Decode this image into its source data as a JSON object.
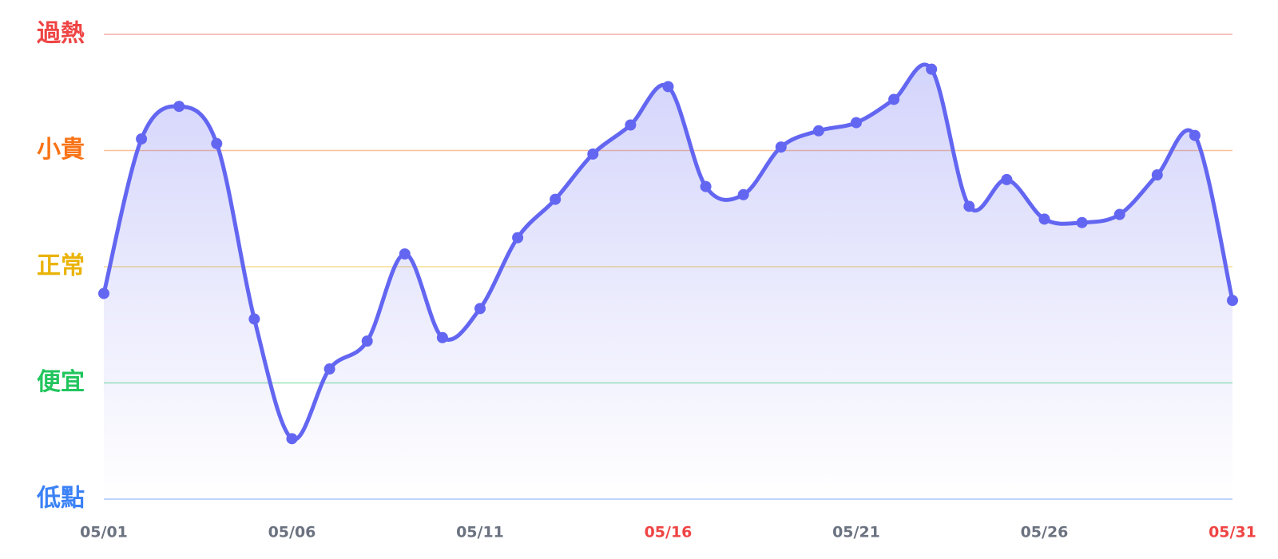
{
  "chart_data": {
    "type": "line",
    "categories": [
      "05/01",
      null,
      null,
      null,
      null,
      "05/06",
      null,
      null,
      null,
      null,
      "05/11",
      null,
      null,
      null,
      null,
      "05/16",
      null,
      null,
      null,
      null,
      "05/21",
      null,
      null,
      null,
      null,
      "05/26",
      null,
      null,
      null,
      null,
      "05/31"
    ],
    "series": [
      {
        "color": "#6366f1",
        "values": [
          1.77,
          3.1,
          3.38,
          3.06,
          1.55,
          0.52,
          1.12,
          1.36,
          2.11,
          1.39,
          1.64,
          2.25,
          2.58,
          2.97,
          3.22,
          3.55,
          2.69,
          2.62,
          3.03,
          3.17,
          3.24,
          3.44,
          3.7,
          2.52,
          2.75,
          2.41,
          2.38,
          2.45,
          2.79,
          3.13,
          1.71
        ]
      }
    ],
    "ylim": [
      0,
      4
    ],
    "yticks": [
      {
        "value": 0,
        "label": "低點"
      },
      {
        "value": 1,
        "label": "便宜"
      },
      {
        "value": 2,
        "label": "正常"
      },
      {
        "value": 3,
        "label": "小貴"
      },
      {
        "value": 4,
        "label": "過熱"
      }
    ],
    "ytick_colors": [
      "#3b82f6",
      "#22c55e",
      "#eab308",
      "#f97316",
      "#ef4444"
    ],
    "grid": true,
    "smooth": true,
    "area_fill": true,
    "x_label_color": "#6b7280",
    "highlight_color": "#ef4444",
    "highlighted_categories": [
      15,
      30
    ]
  }
}
